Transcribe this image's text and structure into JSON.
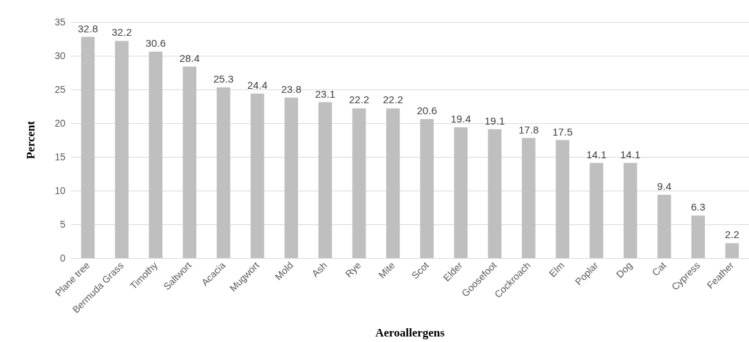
{
  "chart_data": {
    "type": "bar",
    "xlabel": "Aeroallergens",
    "ylabel": "Percent",
    "categories": [
      "Plane tree",
      "Bermuda Grass",
      "Timothy",
      "Saltwort",
      "Acacia",
      "Mugwort",
      "Mold",
      "Ash",
      "Rye",
      "Mite",
      "Scot",
      "Elder",
      "Goosefoot",
      "Cockroach",
      "Elm",
      "Poplar",
      "Dog",
      "Cat",
      "Cypress",
      "Feather"
    ],
    "values": [
      32.8,
      32.2,
      30.6,
      28.4,
      25.3,
      24.4,
      23.8,
      23.1,
      22.2,
      22.2,
      20.6,
      19.4,
      19.1,
      17.8,
      17.5,
      14.1,
      14.1,
      9.4,
      6.3,
      2.2
    ],
    "color": "#bfbfbf",
    "ylim": [
      0,
      35
    ],
    "yticks": [
      0,
      5,
      10,
      15,
      20,
      25,
      30,
      35
    ],
    "grid": "y",
    "data_labels": true
  }
}
